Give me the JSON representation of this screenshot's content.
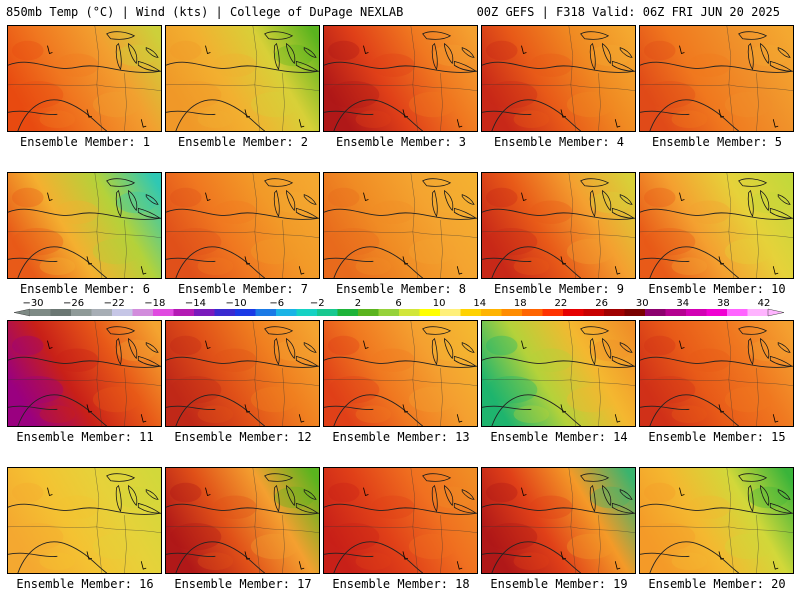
{
  "header": {
    "left": "850mb Temp (°C) | Wind (kts) | College of DuPage NEXLAB",
    "right": "00Z GEFS | F318 Valid: 06Z FRI JUN 20 2025"
  },
  "colorbar": {
    "labels": [
      "-30",
      "-26",
      "-22",
      "-18",
      "-14",
      "-10",
      "-6",
      "-2",
      "2",
      "6",
      "10",
      "14",
      "18",
      "22",
      "26",
      "30",
      "34",
      "38",
      "42"
    ],
    "colors": [
      "#7e8a85",
      "#6b7773",
      "#8f9a98",
      "#a7aeb5",
      "#c6c6e6",
      "#d28cdc",
      "#e04ae0",
      "#b41ab4",
      "#7a1abc",
      "#3a2ad0",
      "#1a3ae6",
      "#1a7ae6",
      "#1ab4e6",
      "#16d2c4",
      "#18c890",
      "#1eb43a",
      "#5ab41e",
      "#96d23a",
      "#d2e63a",
      "#ffff00",
      "#fff07a",
      "#ffd200",
      "#ffb400",
      "#ff8c00",
      "#ff6400",
      "#ff3200",
      "#e60000",
      "#c80000",
      "#a00000",
      "#7a0000",
      "#8c006e",
      "#b40090",
      "#d200b4",
      "#f000d2",
      "#ff64ff",
      "#ffb4ff"
    ]
  },
  "members": [
    {
      "label": "Ensemble Member: 1",
      "colors": [
        "#e84a10",
        "#f07820",
        "#f2a030",
        "#cdd03a"
      ]
    },
    {
      "label": "Ensemble Member: 2",
      "colors": [
        "#f09828",
        "#f2b030",
        "#d8d038",
        "#5ab41e"
      ]
    },
    {
      "label": "Ensemble Member: 3",
      "colors": [
        "#b01818",
        "#e04018",
        "#f07820",
        "#f4a030"
      ]
    },
    {
      "label": "Ensemble Member: 4",
      "colors": [
        "#c82818",
        "#e85a18",
        "#f08a22",
        "#f4a830"
      ]
    },
    {
      "label": "Ensemble Member: 5",
      "colors": [
        "#e04a18",
        "#f0781e",
        "#f0902a",
        "#f4a830"
      ]
    },
    {
      "label": "Ensemble Member: 6",
      "colors": [
        "#e85a18",
        "#f4b030",
        "#b4d23a",
        "#2ec8b4"
      ]
    },
    {
      "label": "Ensemble Member: 7",
      "colors": [
        "#e0501a",
        "#f07820",
        "#f29a28",
        "#f4a830"
      ]
    },
    {
      "label": "Ensemble Member: 8",
      "colors": [
        "#e86a1c",
        "#f08c24",
        "#f4a430",
        "#f4b030"
      ]
    },
    {
      "label": "Ensemble Member: 9",
      "colors": [
        "#c82818",
        "#e85a18",
        "#f4a030",
        "#d8d038"
      ]
    },
    {
      "label": "Ensemble Member: 10",
      "colors": [
        "#e85a18",
        "#f4a030",
        "#e6d23a",
        "#c4d83a"
      ]
    },
    {
      "label": "Ensemble Member: 11",
      "colors": [
        "#9a0080",
        "#c82018",
        "#e85a18",
        "#f4a430"
      ]
    },
    {
      "label": "Ensemble Member: 12",
      "colors": [
        "#c02818",
        "#e05018",
        "#f08020",
        "#f4a430"
      ]
    },
    {
      "label": "Ensemble Member: 13",
      "colors": [
        "#e04018",
        "#f07820",
        "#f4a030",
        "#f4b830"
      ]
    },
    {
      "label": "Ensemble Member: 14",
      "colors": [
        "#1eb46e",
        "#b4d23a",
        "#f4b830",
        "#f09028"
      ]
    },
    {
      "label": "Ensemble Member: 15",
      "colors": [
        "#d03018",
        "#e85a18",
        "#f07820",
        "#f4a030"
      ]
    },
    {
      "label": "Ensemble Member: 16",
      "colors": [
        "#f4a830",
        "#f4c232",
        "#e6d23a",
        "#d2d83a"
      ]
    },
    {
      "label": "Ensemble Member: 17",
      "colors": [
        "#b01818",
        "#e05018",
        "#f4a030",
        "#5ab41e"
      ]
    },
    {
      "label": "Ensemble Member: 18",
      "colors": [
        "#c82018",
        "#e04018",
        "#f07020",
        "#f08c24"
      ]
    },
    {
      "label": "Ensemble Member: 19",
      "colors": [
        "#b01818",
        "#e04018",
        "#f49a28",
        "#3ab46e"
      ]
    },
    {
      "label": "Ensemble Member: 20",
      "colors": [
        "#f49a28",
        "#f4b830",
        "#d2d83a",
        "#3ab43a"
      ]
    }
  ]
}
